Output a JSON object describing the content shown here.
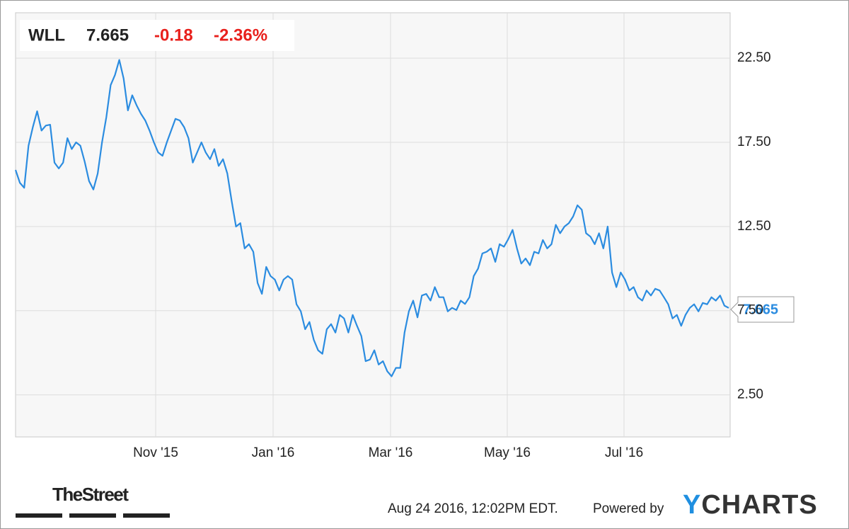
{
  "quote": {
    "symbol": "WLL",
    "price": "7.665",
    "change": "-0.18",
    "change_pct": "-2.36%"
  },
  "chart_data": {
    "type": "line",
    "series": [
      {
        "color": "#2b8ce0",
        "values": [
          15.86,
          15.1,
          14.8,
          17.3,
          18.4,
          19.35,
          18.2,
          18.5,
          18.55,
          16.3,
          15.95,
          16.3,
          17.75,
          17.1,
          17.5,
          17.3,
          16.35,
          15.2,
          14.7,
          15.65,
          17.5,
          19.0,
          20.9,
          21.5,
          22.4,
          21.3,
          19.4,
          20.3,
          19.7,
          19.2,
          18.8,
          18.2,
          17.5,
          16.9,
          16.7,
          17.5,
          18.2,
          18.9,
          18.8,
          18.4,
          17.75,
          16.3,
          16.9,
          17.5,
          16.9,
          16.5,
          17.1,
          16.1,
          16.5,
          15.65,
          14.0,
          12.5,
          12.7,
          11.2,
          11.45,
          11.0,
          9.15,
          8.5,
          10.1,
          9.56,
          9.35,
          8.7,
          9.35,
          9.56,
          9.35,
          7.88,
          7.46,
          6.4,
          6.83,
          5.77,
          5.15,
          4.94,
          6.4,
          6.7,
          6.2,
          7.25,
          7.04,
          6.2,
          7.25,
          6.6,
          6.0,
          4.5,
          4.6,
          5.15,
          4.3,
          4.5,
          3.9,
          3.6,
          4.1,
          4.1,
          6.2,
          7.46,
          8.1,
          7.1,
          8.4,
          8.5,
          8.1,
          8.9,
          8.3,
          8.3,
          7.46,
          7.67,
          7.54,
          8.1,
          7.9,
          8.3,
          9.56,
          10.0,
          10.9,
          11.0,
          11.2,
          10.4,
          11.45,
          11.3,
          11.75,
          12.3,
          11.2,
          10.3,
          10.6,
          10.2,
          11.0,
          10.9,
          11.7,
          11.2,
          11.45,
          12.6,
          12.1,
          12.5,
          12.7,
          13.1,
          13.76,
          13.5,
          12.1,
          11.9,
          11.45,
          12.1,
          11.2,
          12.5,
          9.77,
          8.9,
          9.77,
          9.35,
          8.7,
          8.9,
          8.3,
          8.1,
          8.7,
          8.4,
          8.8,
          8.7,
          8.3,
          7.88,
          7.04,
          7.25,
          6.6,
          7.25,
          7.67,
          7.88,
          7.46,
          7.96,
          7.88,
          8.3,
          8.1,
          8.4,
          7.8,
          7.665
        ]
      }
    ],
    "ylim": [
      0,
      25.2
    ],
    "yticks": [
      {
        "value": 2.5,
        "label": "2.50"
      },
      {
        "value": 7.5,
        "label": "7.50"
      },
      {
        "value": 12.5,
        "label": "12.50"
      },
      {
        "value": 17.5,
        "label": "17.50"
      },
      {
        "value": 22.5,
        "label": "22.50"
      }
    ],
    "xticks": [
      "Nov '15",
      "Jan '16",
      "Mar '16",
      "May '16",
      "Jul '16"
    ],
    "grid": true
  },
  "footer": {
    "source": "TheStreet",
    "timestamp": "Aug 24 2016, 12:02PM EDT.",
    "powered": "Powered by",
    "brand": "YCHARTS"
  }
}
